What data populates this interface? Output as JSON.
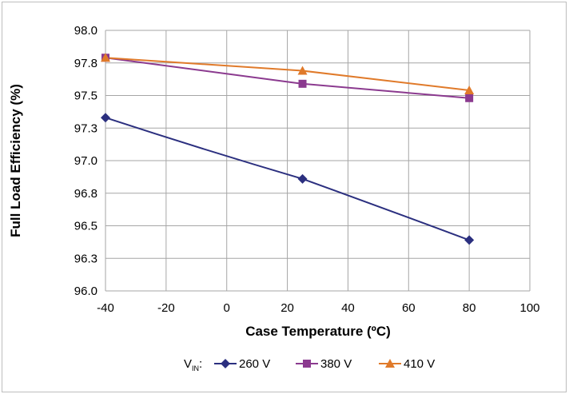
{
  "chart_data": {
    "type": "line",
    "xlabel": "Case Temperature (ºC)",
    "ylabel": "Full Load Efficiency (%)",
    "xlim": [
      -40,
      100
    ],
    "ylim": [
      96.0,
      98.0
    ],
    "x_ticks": [
      -40,
      -20,
      0,
      20,
      40,
      60,
      80,
      100
    ],
    "y_ticks": [
      "96.0",
      "96.3",
      "96.5",
      "96.8",
      "97.0",
      "97.3",
      "97.5",
      "97.8",
      "98.0"
    ],
    "y_tick_values": [
      96.0,
      96.25,
      96.5,
      96.75,
      97.0,
      97.25,
      97.5,
      97.75,
      98.0
    ],
    "grid": true,
    "legend_position": "bottom",
    "legend_prefix": {
      "main": "V",
      "sub": "IN",
      "suffix": ":"
    },
    "series": [
      {
        "name": "260 V",
        "color": "#2b2f7f",
        "marker": "diamond",
        "x": [
          -40,
          25,
          80
        ],
        "y": [
          97.33,
          96.86,
          96.39
        ]
      },
      {
        "name": "380 V",
        "color": "#8b3a8f",
        "marker": "square",
        "x": [
          -40,
          25,
          80
        ],
        "y": [
          97.79,
          97.59,
          97.48
        ]
      },
      {
        "name": "410 V",
        "color": "#e07a2a",
        "marker": "triangle",
        "x": [
          -40,
          25,
          80
        ],
        "y": [
          97.79,
          97.69,
          97.54
        ]
      }
    ]
  }
}
